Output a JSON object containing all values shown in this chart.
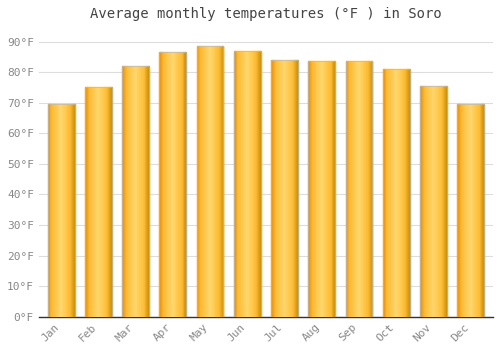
{
  "title": "Average monthly temperatures (°F ) in Soro",
  "months": [
    "Jan",
    "Feb",
    "Mar",
    "Apr",
    "May",
    "Jun",
    "Jul",
    "Aug",
    "Sep",
    "Oct",
    "Nov",
    "Dec"
  ],
  "values": [
    69.5,
    75.0,
    82.0,
    86.5,
    88.5,
    87.0,
    84.0,
    83.5,
    83.5,
    81.0,
    75.5,
    69.5
  ],
  "bar_color_main": "#FFBB33",
  "bar_color_left": "#E8900A",
  "bar_color_right": "#FFD870",
  "bar_edge_color": "#BBBBBB",
  "background_color": "#FFFFFF",
  "grid_color": "#DDDDDD",
  "text_color": "#888888",
  "title_color": "#444444",
  "axis_line_color": "#333333",
  "ylim": [
    0,
    95
  ],
  "yticks": [
    0,
    10,
    20,
    30,
    40,
    50,
    60,
    70,
    80,
    90
  ],
  "ytick_labels": [
    "0°F",
    "10°F",
    "20°F",
    "30°F",
    "40°F",
    "50°F",
    "60°F",
    "70°F",
    "80°F",
    "90°F"
  ],
  "title_fontsize": 10,
  "tick_fontsize": 8,
  "font_family": "monospace",
  "bar_width": 0.72
}
